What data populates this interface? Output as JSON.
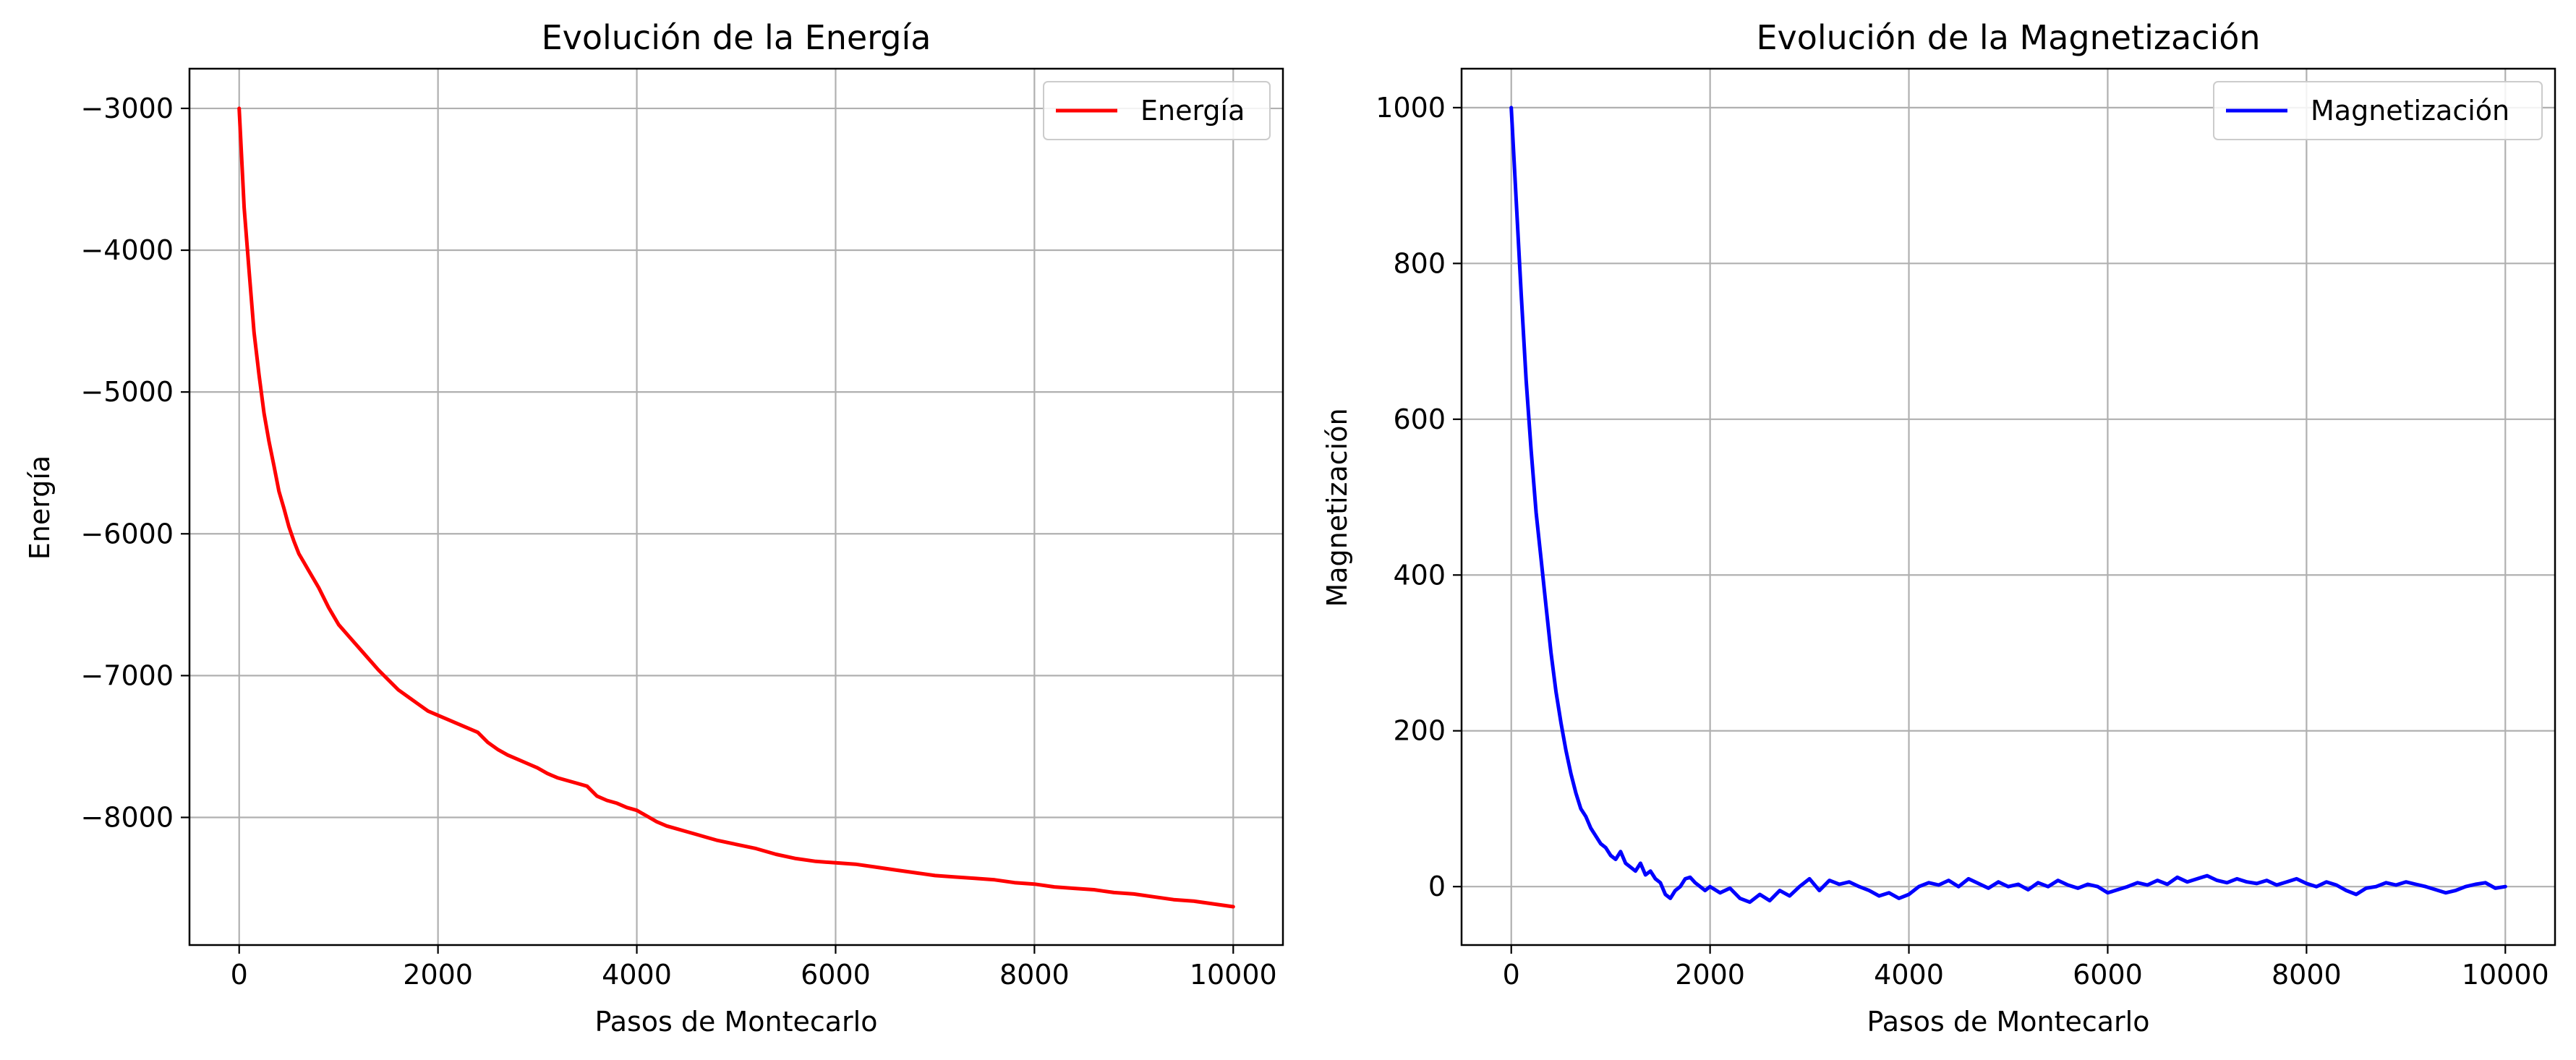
{
  "chart_data": [
    {
      "type": "line",
      "title": "Evolución de la Energía",
      "xlabel": "Pasos de Montecarlo",
      "ylabel": "Energía",
      "xlim": [
        -500,
        10500
      ],
      "ylim": [
        -8900,
        -2720
      ],
      "xticks": [
        0,
        2000,
        4000,
        6000,
        8000,
        10000
      ],
      "yticks": [
        -8000,
        -7000,
        -6000,
        -5000,
        -4000,
        -3000
      ],
      "grid": true,
      "legend_position": "top-right",
      "series": [
        {
          "name": "Energía",
          "color": "#ff0000",
          "x": [
            0,
            50,
            100,
            150,
            200,
            250,
            300,
            350,
            400,
            450,
            500,
            550,
            600,
            650,
            700,
            750,
            800,
            900,
            1000,
            1100,
            1200,
            1300,
            1400,
            1500,
            1600,
            1700,
            1800,
            1900,
            2000,
            2100,
            2200,
            2300,
            2400,
            2500,
            2600,
            2700,
            2800,
            2900,
            3000,
            3100,
            3200,
            3300,
            3400,
            3500,
            3600,
            3700,
            3800,
            3900,
            4000,
            4100,
            4200,
            4300,
            4400,
            4500,
            4600,
            4700,
            4800,
            5000,
            5200,
            5400,
            5600,
            5800,
            6000,
            6200,
            6400,
            6600,
            6800,
            7000,
            7200,
            7400,
            7600,
            7800,
            8000,
            8200,
            8400,
            8600,
            8800,
            9000,
            9200,
            9400,
            9600,
            9800,
            10000
          ],
          "values": [
            -3000,
            -3700,
            -4150,
            -4580,
            -4880,
            -5150,
            -5350,
            -5520,
            -5700,
            -5820,
            -5950,
            -6050,
            -6140,
            -6200,
            -6260,
            -6320,
            -6380,
            -6520,
            -6640,
            -6720,
            -6800,
            -6880,
            -6960,
            -7030,
            -7100,
            -7150,
            -7200,
            -7250,
            -7280,
            -7310,
            -7340,
            -7370,
            -7400,
            -7470,
            -7520,
            -7560,
            -7590,
            -7620,
            -7650,
            -7690,
            -7720,
            -7740,
            -7760,
            -7780,
            -7850,
            -7880,
            -7900,
            -7930,
            -7950,
            -7990,
            -8030,
            -8060,
            -8080,
            -8100,
            -8120,
            -8140,
            -8160,
            -8190,
            -8220,
            -8260,
            -8290,
            -8310,
            -8320,
            -8330,
            -8350,
            -8370,
            -8390,
            -8410,
            -8420,
            -8430,
            -8440,
            -8460,
            -8470,
            -8490,
            -8500,
            -8510,
            -8530,
            -8540,
            -8560,
            -8580,
            -8590,
            -8610,
            -8630
          ]
        }
      ]
    },
    {
      "type": "line",
      "title": "Evolución de la Magnetización",
      "xlabel": "Pasos de Montecarlo",
      "ylabel": "Magnetización",
      "xlim": [
        -500,
        10500
      ],
      "ylim": [
        -75,
        1050
      ],
      "xticks": [
        0,
        2000,
        4000,
        6000,
        8000,
        10000
      ],
      "yticks": [
        0,
        200,
        400,
        600,
        800,
        1000
      ],
      "grid": true,
      "legend_position": "top-right",
      "series": [
        {
          "name": "Magnetización",
          "color": "#0000ff",
          "x": [
            0,
            50,
            100,
            150,
            200,
            250,
            300,
            350,
            400,
            450,
            500,
            550,
            600,
            650,
            700,
            750,
            800,
            850,
            900,
            950,
            1000,
            1050,
            1100,
            1150,
            1200,
            1250,
            1300,
            1350,
            1400,
            1450,
            1500,
            1550,
            1600,
            1650,
            1700,
            1750,
            1800,
            1850,
            1900,
            1950,
            2000,
            2100,
            2200,
            2300,
            2400,
            2500,
            2600,
            2700,
            2800,
            2900,
            3000,
            3100,
            3200,
            3300,
            3400,
            3500,
            3600,
            3700,
            3800,
            3900,
            4000,
            4100,
            4200,
            4300,
            4400,
            4500,
            4600,
            4700,
            4800,
            4900,
            5000,
            5100,
            5200,
            5300,
            5400,
            5500,
            5600,
            5700,
            5800,
            5900,
            6000,
            6100,
            6200,
            6300,
            6400,
            6500,
            6600,
            6700,
            6800,
            6900,
            7000,
            7100,
            7200,
            7300,
            7400,
            7500,
            7600,
            7700,
            7800,
            7900,
            8000,
            8100,
            8200,
            8300,
            8400,
            8500,
            8600,
            8700,
            8800,
            8900,
            9000,
            9100,
            9200,
            9300,
            9400,
            9500,
            9600,
            9700,
            9800,
            9900,
            10000
          ],
          "values": [
            1000,
            880,
            760,
            650,
            560,
            480,
            420,
            360,
            300,
            250,
            210,
            175,
            145,
            120,
            100,
            90,
            75,
            65,
            55,
            50,
            40,
            35,
            45,
            30,
            25,
            20,
            30,
            15,
            20,
            10,
            5,
            -10,
            -15,
            -5,
            0,
            10,
            12,
            5,
            0,
            -5,
            0,
            -8,
            -2,
            -15,
            -20,
            -10,
            -18,
            -5,
            -12,
            0,
            10,
            -5,
            8,
            3,
            6,
            0,
            -5,
            -12,
            -8,
            -15,
            -10,
            0,
            5,
            2,
            8,
            0,
            10,
            4,
            -2,
            6,
            0,
            3,
            -4,
            5,
            0,
            8,
            2,
            -2,
            3,
            0,
            -8,
            -4,
            0,
            5,
            2,
            8,
            3,
            12,
            6,
            10,
            14,
            8,
            5,
            10,
            6,
            4,
            8,
            2,
            6,
            10,
            4,
            0,
            6,
            2,
            -5,
            -10,
            -2,
            0,
            5,
            2,
            6,
            3,
            0,
            -4,
            -8,
            -5,
            0,
            3,
            5,
            -2,
            0
          ]
        }
      ]
    }
  ]
}
